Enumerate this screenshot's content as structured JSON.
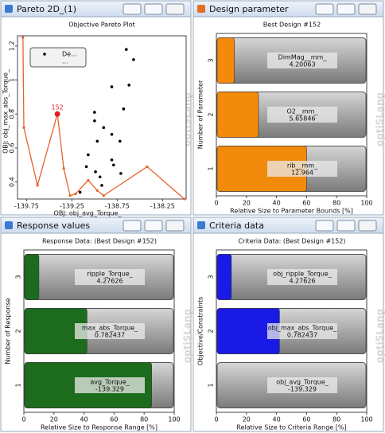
{
  "panels": [
    {
      "title": "Pareto 2D_(1)",
      "watermark": "optiSLang"
    },
    {
      "title": "Design parameter",
      "watermark": "optiSLang"
    },
    {
      "title": "Response values",
      "watermark": "optiSLang"
    },
    {
      "title": "Criteria data",
      "watermark": "optiSLang"
    }
  ],
  "chart_data": [
    {
      "type": "scatter",
      "title": "Objective Pareto Plot",
      "x_label": "OBJ: obj_avg_Torque_",
      "y_label": "OBJ: obj_max_abs_Torque_",
      "xlim": [
        -139.85,
        -137.99
      ],
      "ylim": [
        0.3,
        1.26
      ],
      "xticks": [
        -139.75,
        -139.25,
        -138.75,
        -138.25
      ],
      "yticks": [
        0.4,
        0.6,
        0.8,
        1,
        1.2
      ],
      "series": [
        {
          "name": "De...",
          "color": "#000000",
          "x": [
            -138.65,
            -138.57,
            -138.62,
            -138.81,
            -138.68,
            -139.0,
            -139.0,
            -138.9,
            -138.81,
            -138.72,
            -138.97,
            -138.81,
            -138.79,
            -139.09,
            -138.99,
            -138.94,
            -138.92,
            -138.71,
            -139.16,
            -139.07
          ],
          "values": [
            1.18,
            1.12,
            0.97,
            0.96,
            0.83,
            0.81,
            0.76,
            0.72,
            0.68,
            0.64,
            0.64,
            0.53,
            0.5,
            0.49,
            0.46,
            0.43,
            0.38,
            0.45,
            0.34,
            0.56
          ]
        },
        {
          "name": "...",
          "color": "#e8622c",
          "x": [
            -139.79,
            -139.78,
            -139.63,
            -139.41,
            -139.34,
            -139.27,
            -139.21,
            -139.07,
            -138.97,
            -138.9,
            -138.42,
            -138.01
          ],
          "values": [
            1.25,
            0.72,
            0.38,
            0.8,
            0.48,
            0.32,
            0.33,
            0.41,
            0.35,
            0.32,
            0.49,
            0.3
          ]
        }
      ],
      "highlight": {
        "label": "152",
        "x": -139.41,
        "y": 0.8,
        "color": "#e02020"
      }
    },
    {
      "type": "bar",
      "title": "Best Design #152",
      "x_label": "Relative Size to Parameter Bounds [%]",
      "y_label": "Number of Parameter",
      "categories": [
        "1",
        "2",
        "3"
      ],
      "values": [
        60,
        28,
        12
      ],
      "color": "#f28a0c",
      "xlim": [
        0,
        100
      ],
      "xticks": [
        0,
        20,
        40,
        60,
        80,
        100
      ],
      "bar_labels": [
        {
          "name": "rib__mm_",
          "value": 12.964
        },
        {
          "name": "O2__mm_",
          "value": 5.65846
        },
        {
          "name": "DimMag__mm_",
          "value": 4.20063
        }
      ]
    },
    {
      "type": "bar",
      "title": "Response Data: (Best Design #152)",
      "x_label": "Relative Size to Response Range [%]",
      "y_label": "Number of Response",
      "categories": [
        "1",
        "2",
        "3"
      ],
      "values": [
        85,
        42,
        10
      ],
      "color": "#1d6b1d",
      "xlim": [
        0,
        100
      ],
      "xticks": [
        0,
        20,
        40,
        60,
        80,
        100
      ],
      "bar_labels": [
        {
          "name": "avg_Torque_",
          "value": -139.329
        },
        {
          "name": "max_abs_Torque_",
          "value": 0.782437
        },
        {
          "name": "ripple_Torque_",
          "value": 4.27626
        }
      ]
    },
    {
      "type": "bar",
      "title": "Criteria Data: (Best Design #152)",
      "x_label": "Relative Size to Criteria Range [%]",
      "y_label": "Objective/Constraints",
      "categories": [
        "1",
        "2",
        "3"
      ],
      "values": [
        0,
        42,
        10
      ],
      "color": "#1a1ae6",
      "xlim": [
        0,
        100
      ],
      "xticks": [
        0,
        20,
        40,
        60,
        80,
        100
      ],
      "bar_labels": [
        {
          "name": "obj_avg_Torque_",
          "value": -139.329
        },
        {
          "name": "obj_max_abs_Torque_",
          "value": 0.782437
        },
        {
          "name": "obj_ripple_Torque_",
          "value": 4.27626
        }
      ]
    }
  ]
}
